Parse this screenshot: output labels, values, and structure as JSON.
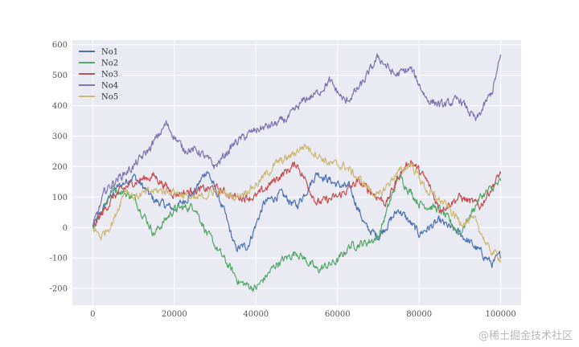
{
  "chart_data": {
    "type": "line",
    "title": "",
    "xlabel": "",
    "ylabel": "",
    "xlim": [
      -5000,
      105000
    ],
    "ylim": [
      -255,
      615
    ],
    "xticks": [
      0,
      20000,
      40000,
      60000,
      80000,
      100000
    ],
    "yticks": [
      -200,
      -100,
      0,
      100,
      200,
      300,
      400,
      500,
      600
    ],
    "grid": true,
    "legend_position": "top-left",
    "background_color": "#eaeaf2",
    "series": [
      {
        "name": "No1",
        "color": "#4c72b0",
        "x": [
          0,
          5000,
          10000,
          15000,
          20000,
          25000,
          28000,
          32000,
          35000,
          38000,
          42000,
          46000,
          50000,
          55000,
          60000,
          63000,
          67000,
          70000,
          75000,
          80000,
          85000,
          90000,
          95000,
          98000,
          100000
        ],
        "values": [
          0,
          120,
          170,
          90,
          60,
          120,
          190,
          60,
          -70,
          -60,
          80,
          110,
          70,
          180,
          140,
          130,
          0,
          -30,
          60,
          -20,
          20,
          -20,
          -80,
          -120,
          -90
        ]
      },
      {
        "name": "No2",
        "color": "#55a868",
        "x": [
          0,
          5000,
          10000,
          13000,
          15000,
          20000,
          25000,
          28000,
          32000,
          36000,
          40000,
          45000,
          50000,
          55000,
          60000,
          63000,
          67000,
          70000,
          75000,
          80000,
          85000,
          90000,
          95000,
          100000
        ],
        "values": [
          0,
          130,
          100,
          30,
          -20,
          60,
          70,
          -20,
          -100,
          -180,
          -200,
          -120,
          -80,
          -140,
          -110,
          -60,
          -50,
          -30,
          170,
          80,
          60,
          -20,
          100,
          150
        ]
      },
      {
        "name": "No3",
        "color": "#c44e52",
        "x": [
          0,
          5000,
          10000,
          15000,
          20000,
          25000,
          30000,
          35000,
          40000,
          45000,
          50000,
          55000,
          60000,
          65000,
          68000,
          72000,
          75000,
          78000,
          82000,
          85000,
          90000,
          95000,
          100000
        ],
        "values": [
          0,
          100,
          150,
          170,
          110,
          120,
          130,
          100,
          100,
          160,
          210,
          80,
          100,
          150,
          120,
          80,
          170,
          220,
          150,
          60,
          100,
          70,
          180
        ]
      },
      {
        "name": "No4",
        "color": "#8172b2",
        "x": [
          0,
          3000,
          6000,
          10000,
          14000,
          18000,
          22000,
          26000,
          30000,
          35000,
          40000,
          45000,
          48000,
          52000,
          55000,
          58000,
          62000,
          66000,
          70000,
          74000,
          78000,
          82000,
          86000,
          90000,
          94000,
          98000,
          100000
        ],
        "values": [
          0,
          120,
          160,
          200,
          260,
          340,
          260,
          250,
          200,
          280,
          320,
          340,
          360,
          420,
          440,
          480,
          410,
          470,
          560,
          500,
          520,
          420,
          400,
          420,
          350,
          450,
          560
        ]
      },
      {
        "name": "No5",
        "color": "#ccb974",
        "x": [
          0,
          2000,
          5000,
          8000,
          10000,
          15000,
          20000,
          25000,
          30000,
          35000,
          40000,
          45000,
          48000,
          52000,
          55000,
          58000,
          62000,
          66000,
          70000,
          74000,
          78000,
          82000,
          86000,
          90000,
          94000,
          97000,
          100000
        ],
        "values": [
          0,
          -30,
          20,
          130,
          100,
          120,
          120,
          90,
          120,
          100,
          140,
          210,
          230,
          270,
          240,
          210,
          200,
          150,
          100,
          170,
          210,
          120,
          80,
          20,
          20,
          -70,
          -100
        ]
      }
    ]
  },
  "watermark": "@稀土掘金技术社区"
}
